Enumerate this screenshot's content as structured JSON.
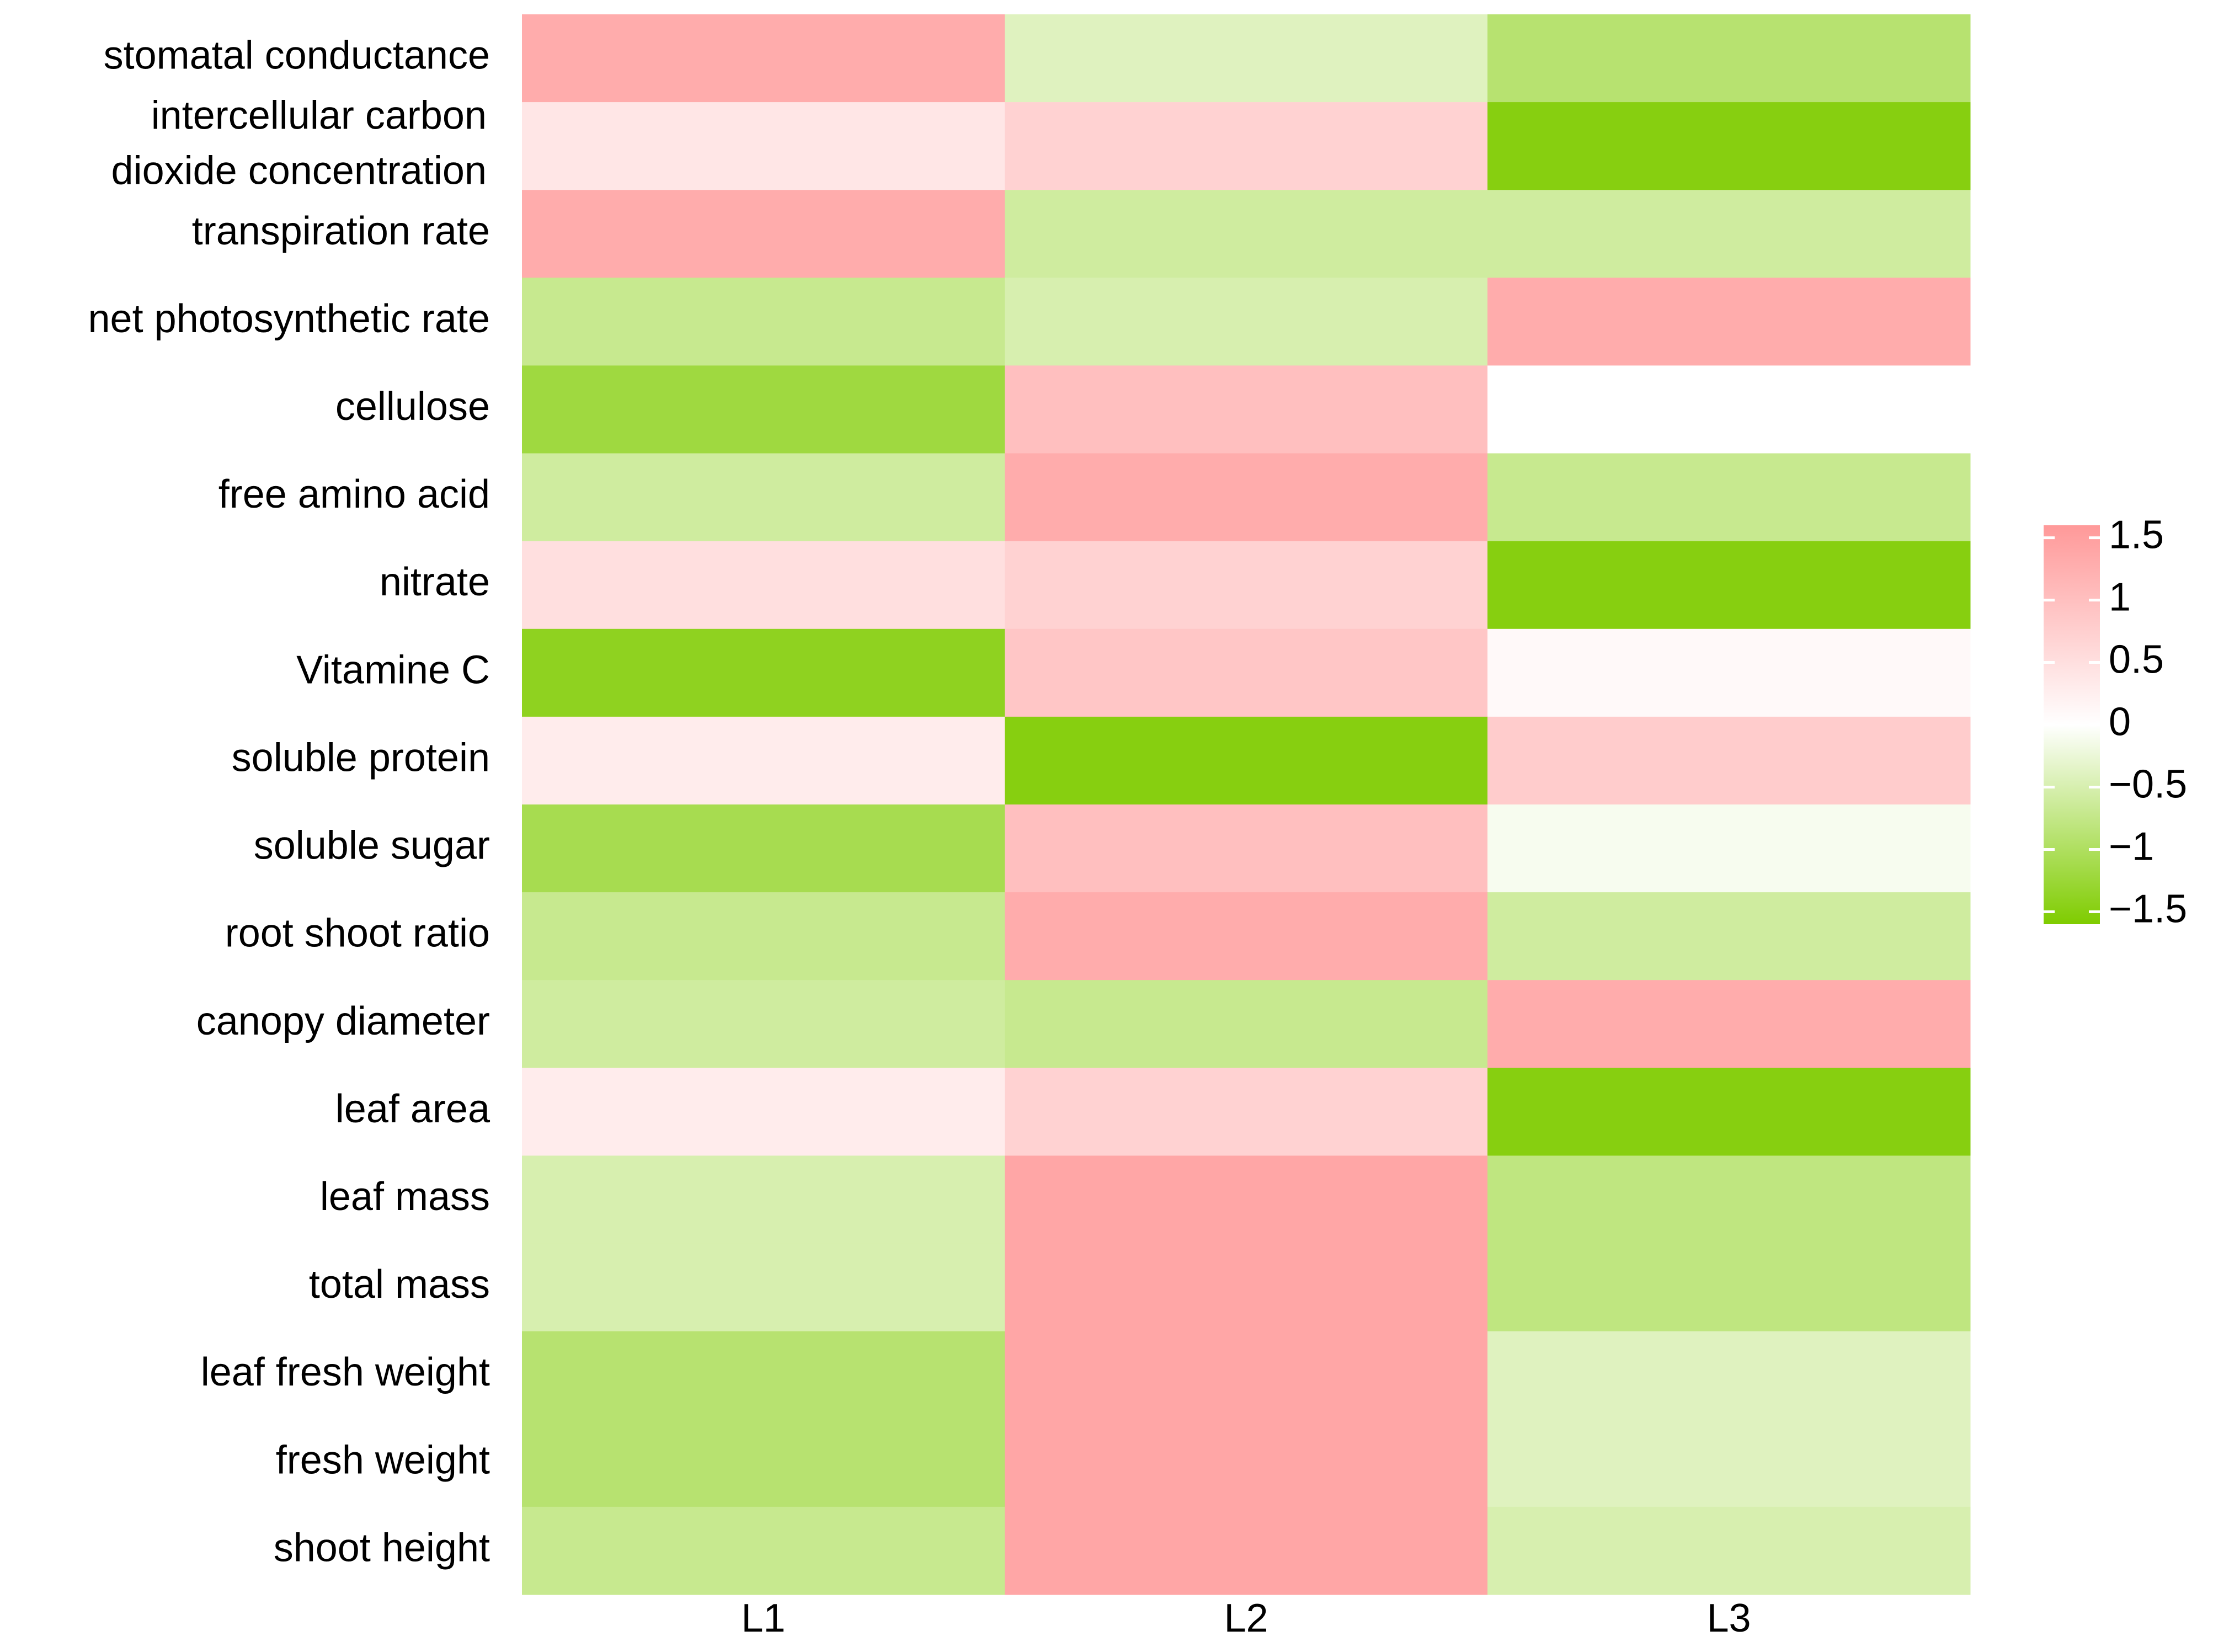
{
  "chart_data": {
    "type": "heatmap",
    "columns": [
      "L1",
      "L2",
      "L3"
    ],
    "rows": [
      "stomatal conductance",
      [
        "intercellular carbon",
        "dioxide concentration"
      ],
      "transpiration rate",
      "net photosynthetic rate",
      "cellulose",
      "free amino acid",
      "nitrate",
      "Vitamine C",
      "soluble protein",
      "soluble sugar",
      "root shoot ratio",
      "canopy diameter",
      "leaf area",
      "leaf mass",
      "total mass",
      "leaf fresh weight",
      "fresh weight",
      "shoot height"
    ],
    "values": [
      [
        1.3,
        -0.4,
        -0.9
      ],
      [
        0.4,
        0.7,
        -1.5
      ],
      [
        1.3,
        -0.6,
        -0.6
      ],
      [
        -0.7,
        -0.5,
        1.3
      ],
      [
        -1.2,
        1.0,
        0.0
      ],
      [
        -0.6,
        1.3,
        -0.7
      ],
      [
        0.5,
        0.7,
        -1.5
      ],
      [
        -1.4,
        0.9,
        0.1
      ],
      [
        0.3,
        -1.5,
        0.8
      ],
      [
        -1.1,
        1.0,
        -0.1
      ],
      [
        -0.7,
        1.3,
        -0.6
      ],
      [
        -0.6,
        -0.7,
        1.3
      ],
      [
        0.3,
        0.7,
        -1.5
      ],
      [
        -0.5,
        1.4,
        -0.8
      ],
      [
        -0.5,
        1.4,
        -0.8
      ],
      [
        -0.9,
        1.4,
        -0.4
      ],
      [
        -0.9,
        1.4,
        -0.4
      ],
      [
        -0.7,
        1.4,
        -0.5
      ]
    ],
    "colors": {
      "low": "#7fcc00",
      "mid": "#ffffff",
      "high": "#ff9999"
    },
    "clim": [
      -1.6,
      1.6
    ],
    "cticks": [
      1.5,
      1,
      0.5,
      0,
      {
        "value": -0.5,
        "label": "−0.5"
      },
      {
        "value": -1,
        "label": "−1"
      },
      {
        "value": -1.5,
        "label": "−1.5"
      }
    ]
  }
}
